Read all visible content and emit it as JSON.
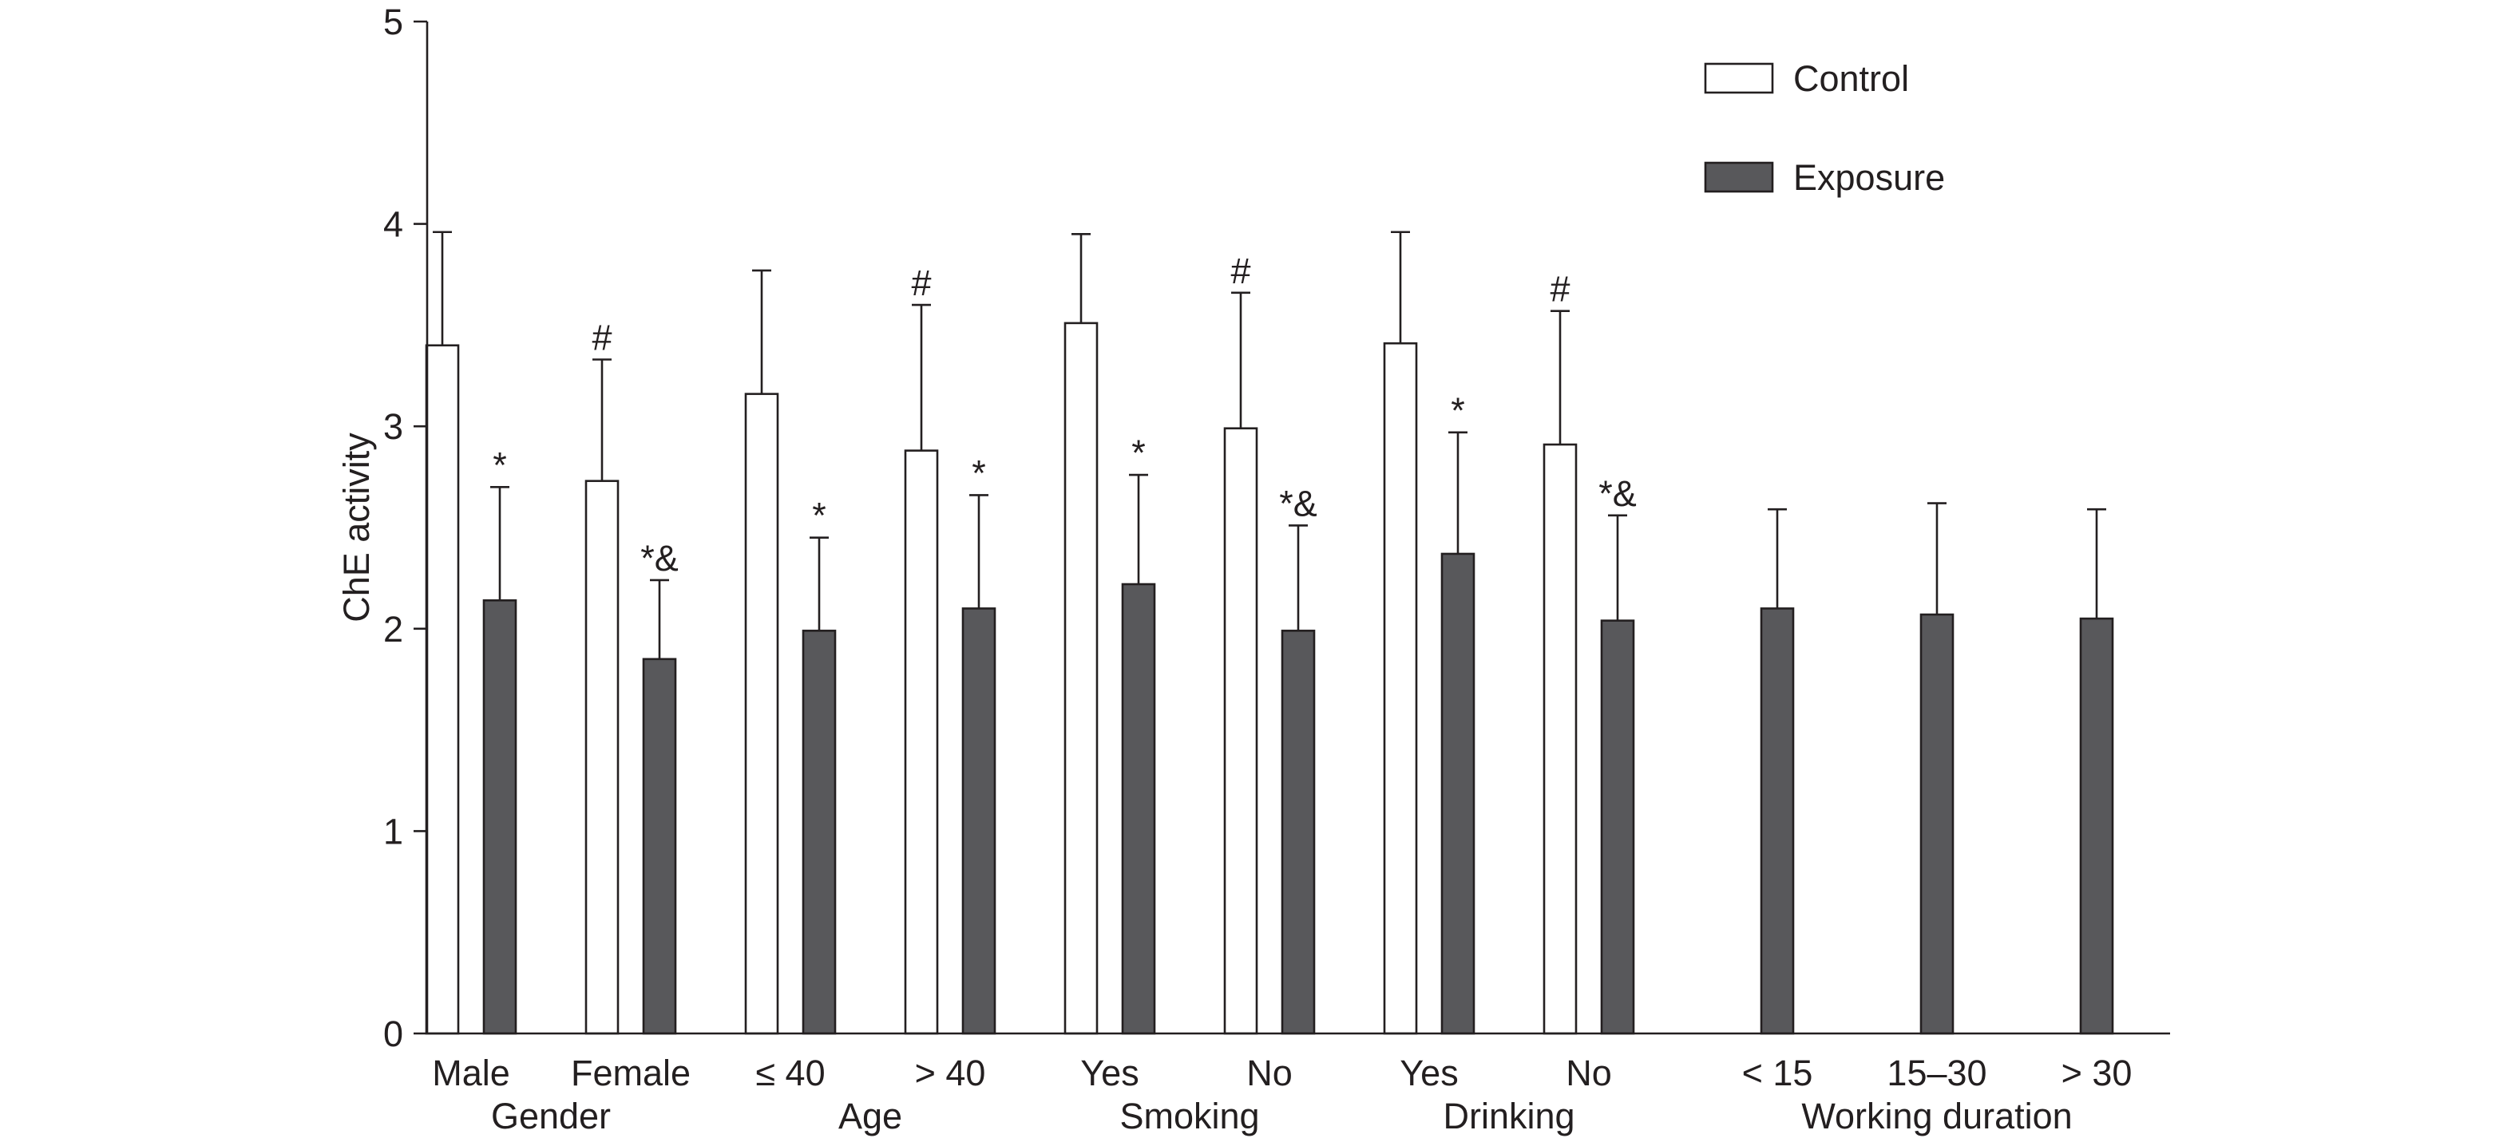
{
  "chart_data": {
    "type": "bar",
    "ylabel": "ChE activity",
    "xlabel": "",
    "ylim": [
      0,
      5
    ],
    "yticks": [
      0,
      1,
      2,
      3,
      4,
      5
    ],
    "grid": false,
    "legend_position": "top-right",
    "colors": {
      "Control": "#ffffff",
      "Exposure": "#58585b",
      "stroke": "#231f20"
    },
    "categories": [
      "Male",
      "Female",
      "≤ 40",
      "> 40",
      "Yes",
      "No",
      "Yes",
      "No",
      "< 15",
      "15–30",
      "> 30"
    ],
    "groups": [
      {
        "label": "Gender",
        "categories": [
          "Male",
          "Female"
        ]
      },
      {
        "label": "Age",
        "categories": [
          "≤ 40",
          "> 40"
        ]
      },
      {
        "label": "Smoking",
        "categories": [
          "Yes",
          "No"
        ]
      },
      {
        "label": "Drinking",
        "categories": [
          "Yes",
          "No"
        ]
      },
      {
        "label": "Working duration",
        "categories": [
          "< 15",
          "15–30",
          "> 30"
        ]
      }
    ],
    "series": [
      {
        "name": "Control",
        "values": [
          3.4,
          2.73,
          3.16,
          2.88,
          3.51,
          2.99,
          3.41,
          2.91,
          null,
          null,
          null
        ],
        "errors": [
          0.56,
          0.6,
          0.61,
          0.72,
          0.44,
          0.67,
          0.55,
          0.66,
          null,
          null,
          null
        ],
        "annotations": [
          "",
          "#",
          "",
          "#",
          "",
          "#",
          "",
          "#",
          "",
          "",
          ""
        ]
      },
      {
        "name": "Exposure",
        "values": [
          2.14,
          1.85,
          1.99,
          2.1,
          2.22,
          1.99,
          2.37,
          2.04,
          2.1,
          2.07,
          2.05
        ],
        "errors": [
          0.56,
          0.39,
          0.46,
          0.56,
          0.54,
          0.52,
          0.6,
          0.52,
          0.49,
          0.55,
          0.54
        ],
        "annotations": [
          "*",
          "*&",
          "*",
          "*",
          "*",
          "*&",
          "*",
          "*&",
          "",
          "",
          ""
        ]
      }
    ]
  }
}
